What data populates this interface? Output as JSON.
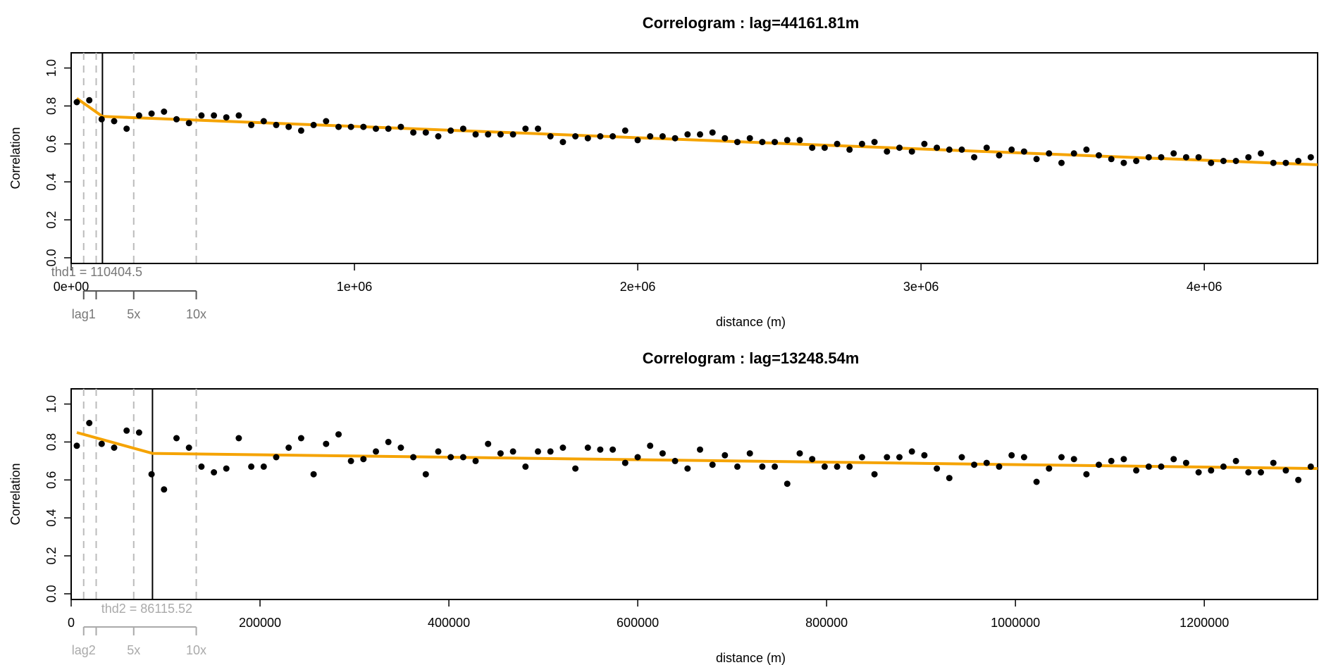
{
  "colors": {
    "fit": "#f5a300",
    "points": "#000000",
    "dashed": "#bbbbbb",
    "threshold": "#000000",
    "scale1": "#555555",
    "scale2": "#aaaaaa"
  },
  "chart_data": [
    {
      "type": "scatter",
      "title": "Correlogram : lag=44161.81m",
      "xlabel": "distance (m)",
      "ylabel": "Correlation",
      "xlim": [
        0,
        4400000
      ],
      "ylim": [
        -0.03,
        1.08
      ],
      "grid": false,
      "x_ticks": [
        0,
        1000000,
        2000000,
        3000000,
        4000000
      ],
      "x_tick_labels": [
        "0e+00",
        "1e+06",
        "2e+06",
        "3e+06",
        "4e+06"
      ],
      "y_ticks": [
        0.0,
        0.2,
        0.4,
        0.6,
        0.8,
        1.0
      ],
      "y_tick_labels": [
        "0.0",
        "0.2",
        "0.4",
        "0.6",
        "0.8",
        "1.0"
      ],
      "points_y": [
        0.82,
        0.83,
        0.73,
        0.72,
        0.68,
        0.75,
        0.76,
        0.77,
        0.73,
        0.71,
        0.75,
        0.75,
        0.74,
        0.75,
        0.7,
        0.72,
        0.7,
        0.69,
        0.67,
        0.7,
        0.72,
        0.69,
        0.69,
        0.69,
        0.68,
        0.68,
        0.69,
        0.66,
        0.66,
        0.64,
        0.67,
        0.68,
        0.65,
        0.65,
        0.65,
        0.65,
        0.68,
        0.68,
        0.64,
        0.61,
        0.64,
        0.63,
        0.64,
        0.64,
        0.67,
        0.62,
        0.64,
        0.64,
        0.63,
        0.65,
        0.65,
        0.66,
        0.63,
        0.61,
        0.63,
        0.61,
        0.61,
        0.62,
        0.62,
        0.58,
        0.58,
        0.6,
        0.57,
        0.6,
        0.61,
        0.56,
        0.58,
        0.56,
        0.6,
        0.58,
        0.57,
        0.57,
        0.53,
        0.58,
        0.54,
        0.57,
        0.56,
        0.52,
        0.55,
        0.5,
        0.55,
        0.57,
        0.54,
        0.52,
        0.5,
        0.51,
        0.53,
        0.53,
        0.55,
        0.53,
        0.53,
        0.5,
        0.51,
        0.51,
        0.53,
        0.55,
        0.5,
        0.5,
        0.51,
        0.53
      ],
      "fit_line": [
        [
          20000,
          0.84
        ],
        [
          110404.5,
          0.745
        ],
        [
          4400000,
          0.49
        ]
      ],
      "threshold": {
        "x": 110404.5,
        "label": "thd1 = 110404.5"
      },
      "dashed_lines_x": [
        44161.81,
        88323.62,
        220809.05,
        441618.1
      ],
      "scale_bar": {
        "ticks_x": [
          44161.81,
          88323.62,
          220809.05,
          441618.1
        ],
        "labels": [
          {
            "x": 44161.81,
            "text": "lag1"
          },
          {
            "x": 220809.05,
            "text": "5x"
          },
          {
            "x": 441618.1,
            "text": "10x"
          }
        ]
      }
    },
    {
      "type": "scatter",
      "title": "Correlogram : lag=13248.54m",
      "xlabel": "distance (m)",
      "ylabel": "Correlation",
      "xlim": [
        0,
        1320000
      ],
      "ylim": [
        -0.03,
        1.08
      ],
      "grid": false,
      "x_ticks": [
        0,
        200000,
        400000,
        600000,
        800000,
        1000000,
        1200000
      ],
      "x_tick_labels": [
        "0",
        "200000",
        "400000",
        "600000",
        "800000",
        "1000000",
        "1200000"
      ],
      "y_ticks": [
        0.0,
        0.2,
        0.4,
        0.6,
        0.8,
        1.0
      ],
      "y_tick_labels": [
        "0.0",
        "0.2",
        "0.4",
        "0.6",
        "0.8",
        "1.0"
      ],
      "points_y": [
        0.78,
        0.9,
        0.79,
        0.77,
        0.86,
        0.85,
        0.63,
        0.55,
        0.82,
        0.77,
        0.67,
        0.64,
        0.66,
        0.82,
        0.67,
        0.67,
        0.72,
        0.77,
        0.82,
        0.63,
        0.79,
        0.84,
        0.7,
        0.71,
        0.75,
        0.8,
        0.77,
        0.72,
        0.63,
        0.75,
        0.72,
        0.72,
        0.7,
        0.79,
        0.74,
        0.75,
        0.67,
        0.75,
        0.75,
        0.77,
        0.66,
        0.77,
        0.76,
        0.76,
        0.69,
        0.72,
        0.78,
        0.74,
        0.7,
        0.66,
        0.76,
        0.68,
        0.73,
        0.67,
        0.74,
        0.67,
        0.67,
        0.58,
        0.74,
        0.71,
        0.67,
        0.67,
        0.67,
        0.72,
        0.63,
        0.72,
        0.72,
        0.75,
        0.73,
        0.66,
        0.61,
        0.72,
        0.68,
        0.69,
        0.67,
        0.73,
        0.72,
        0.59,
        0.66,
        0.72,
        0.71,
        0.63,
        0.68,
        0.7,
        0.71,
        0.65,
        0.67,
        0.67,
        0.71,
        0.69,
        0.64,
        0.65,
        0.67,
        0.7,
        0.64,
        0.64,
        0.69,
        0.65,
        0.6,
        0.67
      ],
      "fit_line": [
        [
          6000,
          0.85
        ],
        [
          86115.52,
          0.74
        ],
        [
          1320000,
          0.66
        ]
      ],
      "threshold": {
        "x": 86115.52,
        "label": "thd2 = 86115.52"
      },
      "dashed_lines_x": [
        13248.54,
        26497.08,
        66242.7,
        132485.4
      ],
      "scale_bar": {
        "ticks_x": [
          13248.54,
          26497.08,
          66242.7,
          132485.4
        ],
        "labels": [
          {
            "x": 13248.54,
            "text": "lag2"
          },
          {
            "x": 66242.7,
            "text": "5x"
          },
          {
            "x": 132485.4,
            "text": "10x"
          }
        ]
      }
    }
  ]
}
